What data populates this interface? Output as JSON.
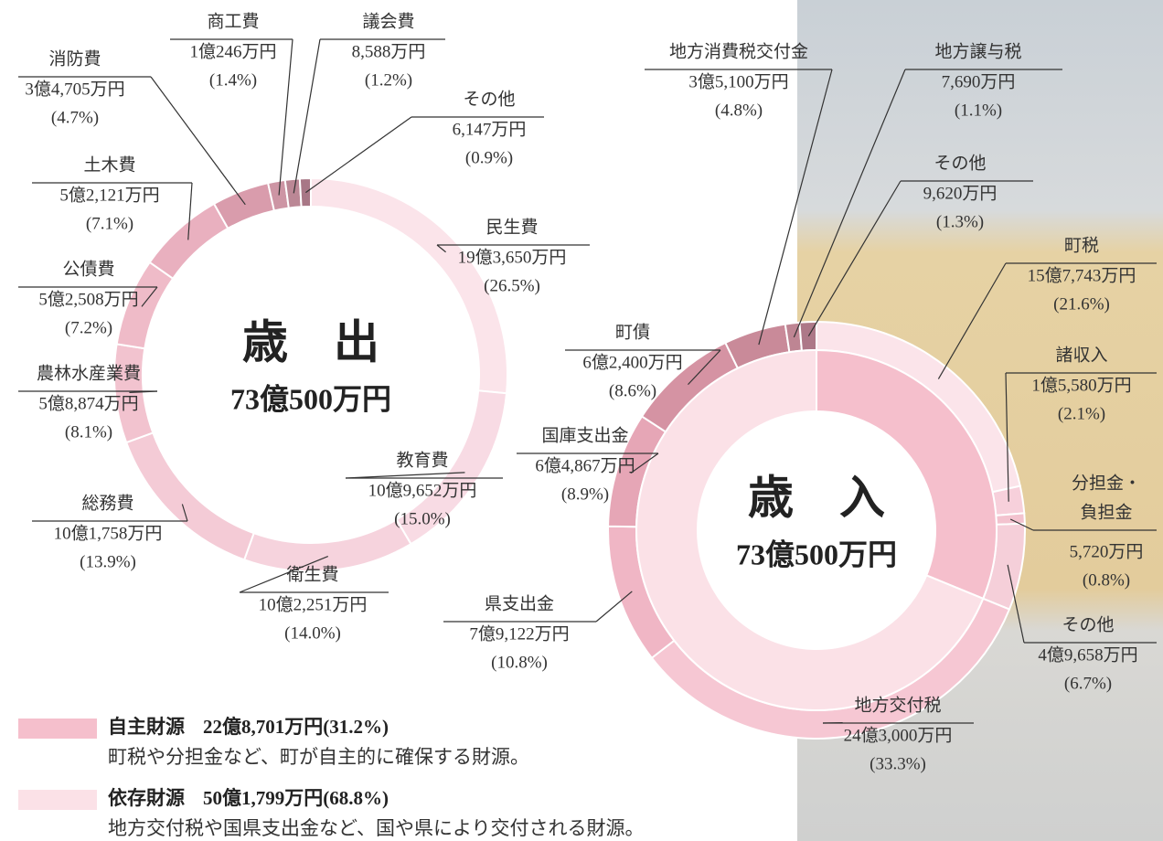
{
  "chart_data": [
    {
      "type": "donut",
      "title": "歳　出",
      "total": "73億500万円",
      "categories": [
        "民生費",
        "教育費",
        "衛生費",
        "総務費",
        "農林水産業費",
        "公債費",
        "土木費",
        "消防費",
        "商工費",
        "議会費",
        "その他"
      ],
      "amounts": [
        "19億3,650万円",
        "10億9,652万円",
        "10億2,251万円",
        "10億1,758万円",
        "5億8,874万円",
        "5億2,508万円",
        "5億2,121万円",
        "3億4,705万円",
        "1億246万円",
        "8,588万円",
        "6,147万円"
      ],
      "values": [
        26.5,
        15.0,
        14.0,
        13.9,
        8.1,
        7.2,
        7.1,
        4.7,
        1.4,
        1.2,
        0.9
      ],
      "value_labels": [
        "(26.5%)",
        "(15.0%)",
        "(14.0%)",
        "(13.9%)",
        "(8.1%)",
        "(7.2%)",
        "(7.1%)",
        "(4.7%)",
        "(1.4%)",
        "(1.2%)",
        "(0.9%)"
      ],
      "colors": [
        "#fbe4ea",
        "#f8dbe4",
        "#f6d3dd",
        "#f4cbd6",
        "#f2c3cf",
        "#efbbc8",
        "#e9b0bf",
        "#d99cac",
        "#cd95a4",
        "#bb8795",
        "#a87786"
      ]
    },
    {
      "type": "donut",
      "title": "歳　入",
      "total": "73億500万円",
      "categories": [
        "町税",
        "諸収入",
        "分担金・負担金",
        "その他",
        "地方交付税",
        "県支出金",
        "国庫支出金",
        "町債",
        "地方消費税交付金",
        "地方譲与税",
        "その他"
      ],
      "amounts": [
        "15億7,743万円",
        "1億5,580万円",
        "5,720万円",
        "4億9,658万円",
        "24億3,000万円",
        "7億9,122万円",
        "6億4,867万円",
        "6億2,400万円",
        "3億5,100万円",
        "7,690万円",
        "9,620万円"
      ],
      "values": [
        21.6,
        2.1,
        0.8,
        6.7,
        33.3,
        10.8,
        8.9,
        8.6,
        4.8,
        1.1,
        1.3
      ],
      "value_labels": [
        "(21.6%)",
        "(2.1%)",
        "(0.8%)",
        "(6.7%)",
        "(33.3%)",
        "(10.8%)",
        "(8.9%)",
        "(8.6%)",
        "(4.8%)",
        "(1.1%)",
        "(1.3%)"
      ],
      "colors": [
        "#fbe4ea",
        "#f7d0db",
        "#f3c3cf",
        "#f5cfd9",
        "#f6c7d3",
        "#f0b6c5",
        "#e6a6b6",
        "#d593a3",
        "#c98a99",
        "#be8593",
        "#ad7888"
      ],
      "inner": {
        "categories": [
          "自主財源",
          "依存財源"
        ],
        "amounts": [
          "22億8,701万円",
          "50億1,799万円"
        ],
        "values": [
          31.2,
          68.8
        ],
        "value_labels": [
          "(31.2%)",
          "(68.8%)"
        ],
        "descriptions": [
          "町税や分担金など、町が自主的に確保する財源。",
          "地方交付税や国県支出金など、国や県により交付される財源。"
        ],
        "colors": [
          "#f5bfcc",
          "#fbe1e7"
        ]
      }
    }
  ]
}
